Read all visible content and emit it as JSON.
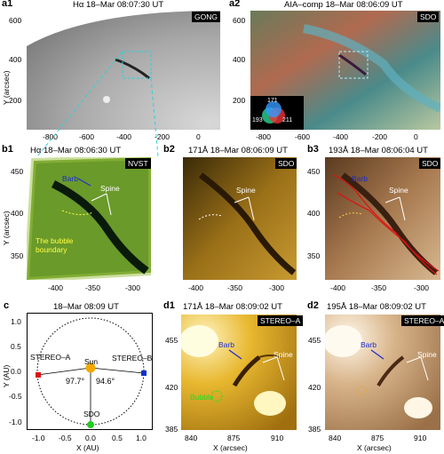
{
  "a1": {
    "label": "a1",
    "title": "Hα 18–Mar 08:07:30 UT",
    "badge": "GONG",
    "yticks": [
      "600",
      "400",
      "200"
    ],
    "xticks": [
      "-800",
      "-600",
      "-400",
      "-200",
      "0"
    ],
    "ylabel": "Y (arcsec)"
  },
  "a2": {
    "label": "a2",
    "title": "AIA–comp 18–Mar 08:06:09 UT",
    "badge": "SDO",
    "yticks": [
      "600",
      "400",
      "200"
    ],
    "xticks": [
      "-800",
      "-600",
      "-400",
      "-200",
      "0"
    ],
    "wheel": {
      "top": "171",
      "left": "193",
      "right": "211"
    }
  },
  "b1": {
    "label": "b1",
    "title": "Hα 18–Mar 08:06:30 UT",
    "badge": "NVST",
    "yticks": [
      "450",
      "400",
      "350"
    ],
    "xticks": [
      "-400",
      "-350",
      "-300"
    ],
    "ylabel": "Y (arcsec)",
    "barb": "Barb",
    "spine": "Spine",
    "bubble": "The bubble boundary"
  },
  "b2": {
    "label": "b2",
    "title": "171Å 18–Mar 08:06:09 UT",
    "badge": "SDO",
    "xticks": [
      "-400",
      "-350",
      "-300"
    ],
    "spine": "Spine"
  },
  "b3": {
    "label": "b3",
    "title": "193Å 18–Mar 08:06:04 UT",
    "badge": "SDO",
    "yticks": [
      "450",
      "400",
      "350"
    ],
    "xticks": [
      "-400",
      "-350",
      "-300"
    ],
    "barb": "Barb",
    "spine": "Spine"
  },
  "c": {
    "label": "c",
    "title": "18–Mar 08:09 UT",
    "xlabel": "X (AU)",
    "ylabel": "Y (AU)",
    "xticks": [
      "-1.0",
      "-0.5",
      "0.0",
      "0.5",
      "1.0"
    ],
    "yticks": [
      "1.0",
      "0.5",
      "0.0",
      "-0.5",
      "-1.0"
    ],
    "stereo_a": "STEREO–A",
    "stereo_b": "STEREO–B",
    "sun": "Sun",
    "sdo": "SDO",
    "angle1": "97.7°",
    "angle2": "94.6°",
    "colors": {
      "stereo_a": "#dd1111",
      "stereo_b": "#1133cc",
      "sun": "#f2a900",
      "sdo": "#22cc22"
    }
  },
  "d1": {
    "label": "d1",
    "title": "171Å 18–Mar 08:09:02 UT",
    "badge": "STEREO–A",
    "yticks": [
      "455",
      "420",
      "385"
    ],
    "xticks": [
      "840",
      "875",
      "910"
    ],
    "xlabel": "X (arcsec)",
    "barb": "Barb",
    "spine": "Spine",
    "bubble": "Bubble"
  },
  "d2": {
    "label": "d2",
    "title": "195Å 18–Mar 08:09:02 UT",
    "badge": "STEREO–A",
    "yticks": [
      "455",
      "420",
      "385"
    ],
    "xticks": [
      "840",
      "875",
      "910"
    ],
    "xlabel": "X (arcsec)",
    "barb": "Barb",
    "spine": "Spine"
  }
}
